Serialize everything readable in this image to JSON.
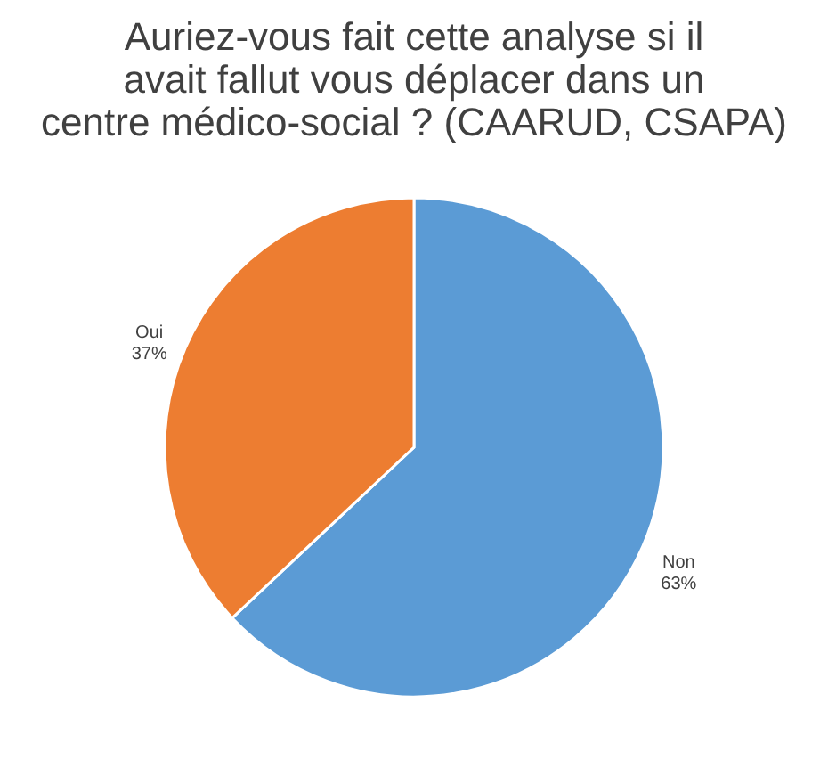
{
  "chart_data": {
    "type": "pie",
    "title": "Auriez-vous fait cette analyse si il avait fallut vous déplacer dans un centre médico-social ? (CAARUD, CSAPA)",
    "categories": [
      "Non",
      "Oui"
    ],
    "values": [
      63,
      37
    ],
    "colors": [
      "#5b9bd5",
      "#ed7d31"
    ],
    "value_labels": [
      "63%",
      "37%"
    ],
    "legend": false
  }
}
